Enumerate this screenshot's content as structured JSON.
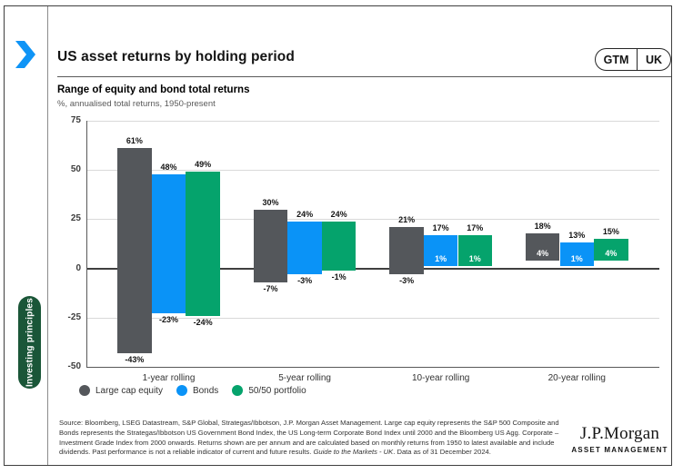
{
  "header": {
    "title": "US asset returns by holding period",
    "badge_left": "GTM",
    "badge_right": "UK"
  },
  "sidebar": {
    "label": "Investing principles"
  },
  "chart_data": {
    "type": "bar",
    "title": "Range of equity and bond total returns",
    "subtitle": "%, annualised total returns, 1950-present",
    "categories": [
      "1-year rolling",
      "5-year rolling",
      "10-year rolling",
      "20-year rolling"
    ],
    "series": [
      {
        "name": "Large cap equity",
        "color": "#54575b",
        "max": [
          61,
          30,
          21,
          18
        ],
        "min": [
          -43,
          -7,
          -3,
          4
        ]
      },
      {
        "name": "Bonds",
        "color": "#0a93f7",
        "max": [
          48,
          24,
          17,
          13
        ],
        "min": [
          -23,
          -3,
          1,
          1
        ]
      },
      {
        "name": "50/50 portfolio",
        "color": "#05a36c",
        "max": [
          49,
          24,
          17,
          15
        ],
        "min": [
          -24,
          -1,
          1,
          4
        ]
      }
    ],
    "y_ticks": [
      75,
      50,
      25,
      0,
      -25,
      -50
    ],
    "ylim": [
      -50,
      75
    ],
    "xlabel": "",
    "ylabel": "",
    "grid": true,
    "legend_position": "bottom",
    "value_suffix": "%"
  },
  "footer": {
    "source": "Source: Bloomberg, LSEG Datastream, S&P Global, Strategas/Ibbotson, J.P. Morgan Asset Management. Large cap equity represents the S&P 500 Composite and Bonds represents the Strategas/Ibbotson US Government Bond Index, the US Long-term Corporate Bond Index until 2000 and the Bloomberg US Agg. Corporate – Investment Grade Index from 2000 onwards. Returns shown are per annum and are calculated based on monthly returns from 1950 to latest available and include dividends. Past performance is not a reliable indicator of current and future results. ",
    "source_italic": "Guide to the Markets - UK",
    "source_end": ". Data as of 31 December 2024.",
    "logo_main": "J.P.Morgan",
    "logo_sub": "ASSET MANAGEMENT"
  },
  "colors": {
    "accent_blue": "#0a93f7",
    "accent_green": "#05a36c",
    "accent_gray": "#54575b",
    "pill_green": "#1a5638"
  }
}
